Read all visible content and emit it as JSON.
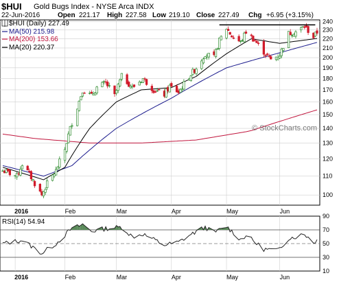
{
  "header": {
    "symbol": "$HUI",
    "name": "Gold Bugs Index - NYSE Arca INDX",
    "date": "22-Jun-2016",
    "open_label": "Open",
    "open": "221.17",
    "high_label": "High",
    "high": "227.58",
    "low_label": "Low",
    "low": "219.10",
    "close_label": "Close",
    "close": "227.49",
    "chg_label": "Chg",
    "chg": "+6.95 (+3.15%)"
  },
  "watermark": "© StockCharts.com",
  "colors": {
    "background": "#ffffff",
    "up_candle": "#2e8b2e",
    "down_candle": "#d11a2a",
    "ma50": "#1a1a8c",
    "ma200": "#c0143c",
    "ma20": "#000000",
    "rsi_line": "#222222",
    "rsi_fill": "#5a8a5a"
  },
  "chart_data": [
    {
      "type": "candlestick",
      "title": "$HUI (Daily) 227.49",
      "legend": [
        {
          "label": "MA(50) 215.98",
          "color": "#1a1a8c"
        },
        {
          "label": "MA(200) 153.66",
          "color": "#c0143c"
        },
        {
          "label": "MA(20) 220.37",
          "color": "#000000"
        }
      ],
      "x_axis": {
        "start": "2015-12-28",
        "end": "2016-06-22",
        "month_labels": [
          {
            "label": "2016",
            "date": "2016-01-04"
          },
          {
            "label": "Feb",
            "date": "2016-02-01"
          },
          {
            "label": "Mar",
            "date": "2016-03-01"
          },
          {
            "label": "Apr",
            "date": "2016-04-01"
          },
          {
            "label": "May",
            "date": "2016-05-02"
          },
          {
            "label": "Jun",
            "date": "2016-06-01"
          }
        ]
      },
      "y_axis": {
        "scale": "log",
        "range": [
          95,
          242
        ],
        "ticks": [
          100,
          110,
          120,
          130,
          140,
          150,
          160,
          170,
          180,
          190,
          200,
          210,
          220,
          230,
          240
        ],
        "position": "right",
        "grid": true
      },
      "resistance_line": {
        "value": 236,
        "from": "2016-04-28",
        "to": "2016-06-21"
      },
      "close_anchors": [
        {
          "date": "2015-12-28",
          "close": 113
        },
        {
          "date": "2015-12-31",
          "close": 112
        },
        {
          "date": "2016-01-05",
          "close": 110
        },
        {
          "date": "2016-01-08",
          "close": 117
        },
        {
          "date": "2016-01-12",
          "close": 111
        },
        {
          "date": "2016-01-15",
          "close": 106
        },
        {
          "date": "2016-01-19",
          "close": 100
        },
        {
          "date": "2016-01-22",
          "close": 106
        },
        {
          "date": "2016-01-27",
          "close": 113
        },
        {
          "date": "2016-02-01",
          "close": 126
        },
        {
          "date": "2016-02-04",
          "close": 140
        },
        {
          "date": "2016-02-08",
          "close": 156
        },
        {
          "date": "2016-02-11",
          "close": 170
        },
        {
          "date": "2016-02-16",
          "close": 165
        },
        {
          "date": "2016-02-19",
          "close": 172
        },
        {
          "date": "2016-02-24",
          "close": 176
        },
        {
          "date": "2016-02-29",
          "close": 165
        },
        {
          "date": "2016-03-04",
          "close": 182
        },
        {
          "date": "2016-03-10",
          "close": 172
        },
        {
          "date": "2016-03-16",
          "close": 180
        },
        {
          "date": "2016-03-22",
          "close": 170
        },
        {
          "date": "2016-03-28",
          "close": 166
        },
        {
          "date": "2016-03-31",
          "close": 173
        },
        {
          "date": "2016-04-05",
          "close": 168
        },
        {
          "date": "2016-04-11",
          "close": 182
        },
        {
          "date": "2016-04-15",
          "close": 190
        },
        {
          "date": "2016-04-20",
          "close": 204
        },
        {
          "date": "2016-04-25",
          "close": 200
        },
        {
          "date": "2016-04-28",
          "close": 218
        },
        {
          "date": "2016-05-02",
          "close": 232
        },
        {
          "date": "2016-05-05",
          "close": 223
        },
        {
          "date": "2016-05-10",
          "close": 216
        },
        {
          "date": "2016-05-13",
          "close": 228
        },
        {
          "date": "2016-05-18",
          "close": 218
        },
        {
          "date": "2016-05-23",
          "close": 206
        },
        {
          "date": "2016-05-27",
          "close": 198
        },
        {
          "date": "2016-06-01",
          "close": 203
        },
        {
          "date": "2016-06-06",
          "close": 226
        },
        {
          "date": "2016-06-10",
          "close": 228
        },
        {
          "date": "2016-06-15",
          "close": 234
        },
        {
          "date": "2016-06-20",
          "close": 222
        },
        {
          "date": "2016-06-22",
          "close": 227.49
        }
      ],
      "ma50_anchors": [
        {
          "date": "2015-12-28",
          "value": 116
        },
        {
          "date": "2016-01-20",
          "value": 110
        },
        {
          "date": "2016-02-05",
          "value": 116
        },
        {
          "date": "2016-03-01",
          "value": 140
        },
        {
          "date": "2016-04-01",
          "value": 163
        },
        {
          "date": "2016-05-02",
          "value": 190
        },
        {
          "date": "2016-06-01",
          "value": 205
        },
        {
          "date": "2016-06-22",
          "value": 215.98
        }
      ],
      "ma200_anchors": [
        {
          "date": "2015-12-28",
          "value": 136
        },
        {
          "date": "2016-01-15",
          "value": 133
        },
        {
          "date": "2016-02-15",
          "value": 130
        },
        {
          "date": "2016-03-15",
          "value": 130
        },
        {
          "date": "2016-04-15",
          "value": 132
        },
        {
          "date": "2016-05-15",
          "value": 138
        },
        {
          "date": "2016-06-22",
          "value": 153.66
        }
      ],
      "ma20_anchors": [
        {
          "date": "2015-12-28",
          "value": 115
        },
        {
          "date": "2016-01-20",
          "value": 108
        },
        {
          "date": "2016-02-01",
          "value": 115
        },
        {
          "date": "2016-02-15",
          "value": 140
        },
        {
          "date": "2016-03-01",
          "value": 160
        },
        {
          "date": "2016-03-15",
          "value": 170
        },
        {
          "date": "2016-04-01",
          "value": 172
        },
        {
          "date": "2016-04-15",
          "value": 182
        },
        {
          "date": "2016-05-02",
          "value": 204
        },
        {
          "date": "2016-05-16",
          "value": 220
        },
        {
          "date": "2016-06-01",
          "value": 215
        },
        {
          "date": "2016-06-22",
          "value": 220.37
        }
      ]
    },
    {
      "type": "line",
      "title": "RSI(14) 54.94",
      "y_axis": {
        "range": [
          10,
          90
        ],
        "ticks": [
          10,
          30,
          50,
          70,
          90
        ],
        "position": "right"
      },
      "reference_lines": [
        30,
        50,
        70
      ],
      "series": [
        {
          "name": "RSI(14)",
          "anchors": [
            {
              "date": "2015-12-28",
              "value": 50
            },
            {
              "date": "2016-01-08",
              "value": 55
            },
            {
              "date": "2016-01-19",
              "value": 36
            },
            {
              "date": "2016-01-27",
              "value": 50
            },
            {
              "date": "2016-02-04",
              "value": 70
            },
            {
              "date": "2016-02-11",
              "value": 78
            },
            {
              "date": "2016-02-16",
              "value": 68
            },
            {
              "date": "2016-02-24",
              "value": 72
            },
            {
              "date": "2016-03-04",
              "value": 74
            },
            {
              "date": "2016-03-10",
              "value": 60
            },
            {
              "date": "2016-03-16",
              "value": 64
            },
            {
              "date": "2016-03-28",
              "value": 48
            },
            {
              "date": "2016-04-05",
              "value": 52
            },
            {
              "date": "2016-04-11",
              "value": 62
            },
            {
              "date": "2016-04-20",
              "value": 74
            },
            {
              "date": "2016-04-25",
              "value": 66
            },
            {
              "date": "2016-05-02",
              "value": 75
            },
            {
              "date": "2016-05-10",
              "value": 56
            },
            {
              "date": "2016-05-13",
              "value": 62
            },
            {
              "date": "2016-05-23",
              "value": 42
            },
            {
              "date": "2016-05-31",
              "value": 40
            },
            {
              "date": "2016-06-06",
              "value": 58
            },
            {
              "date": "2016-06-10",
              "value": 60
            },
            {
              "date": "2016-06-15",
              "value": 64
            },
            {
              "date": "2016-06-20",
              "value": 52
            },
            {
              "date": "2016-06-22",
              "value": 54.94
            }
          ]
        }
      ]
    }
  ]
}
